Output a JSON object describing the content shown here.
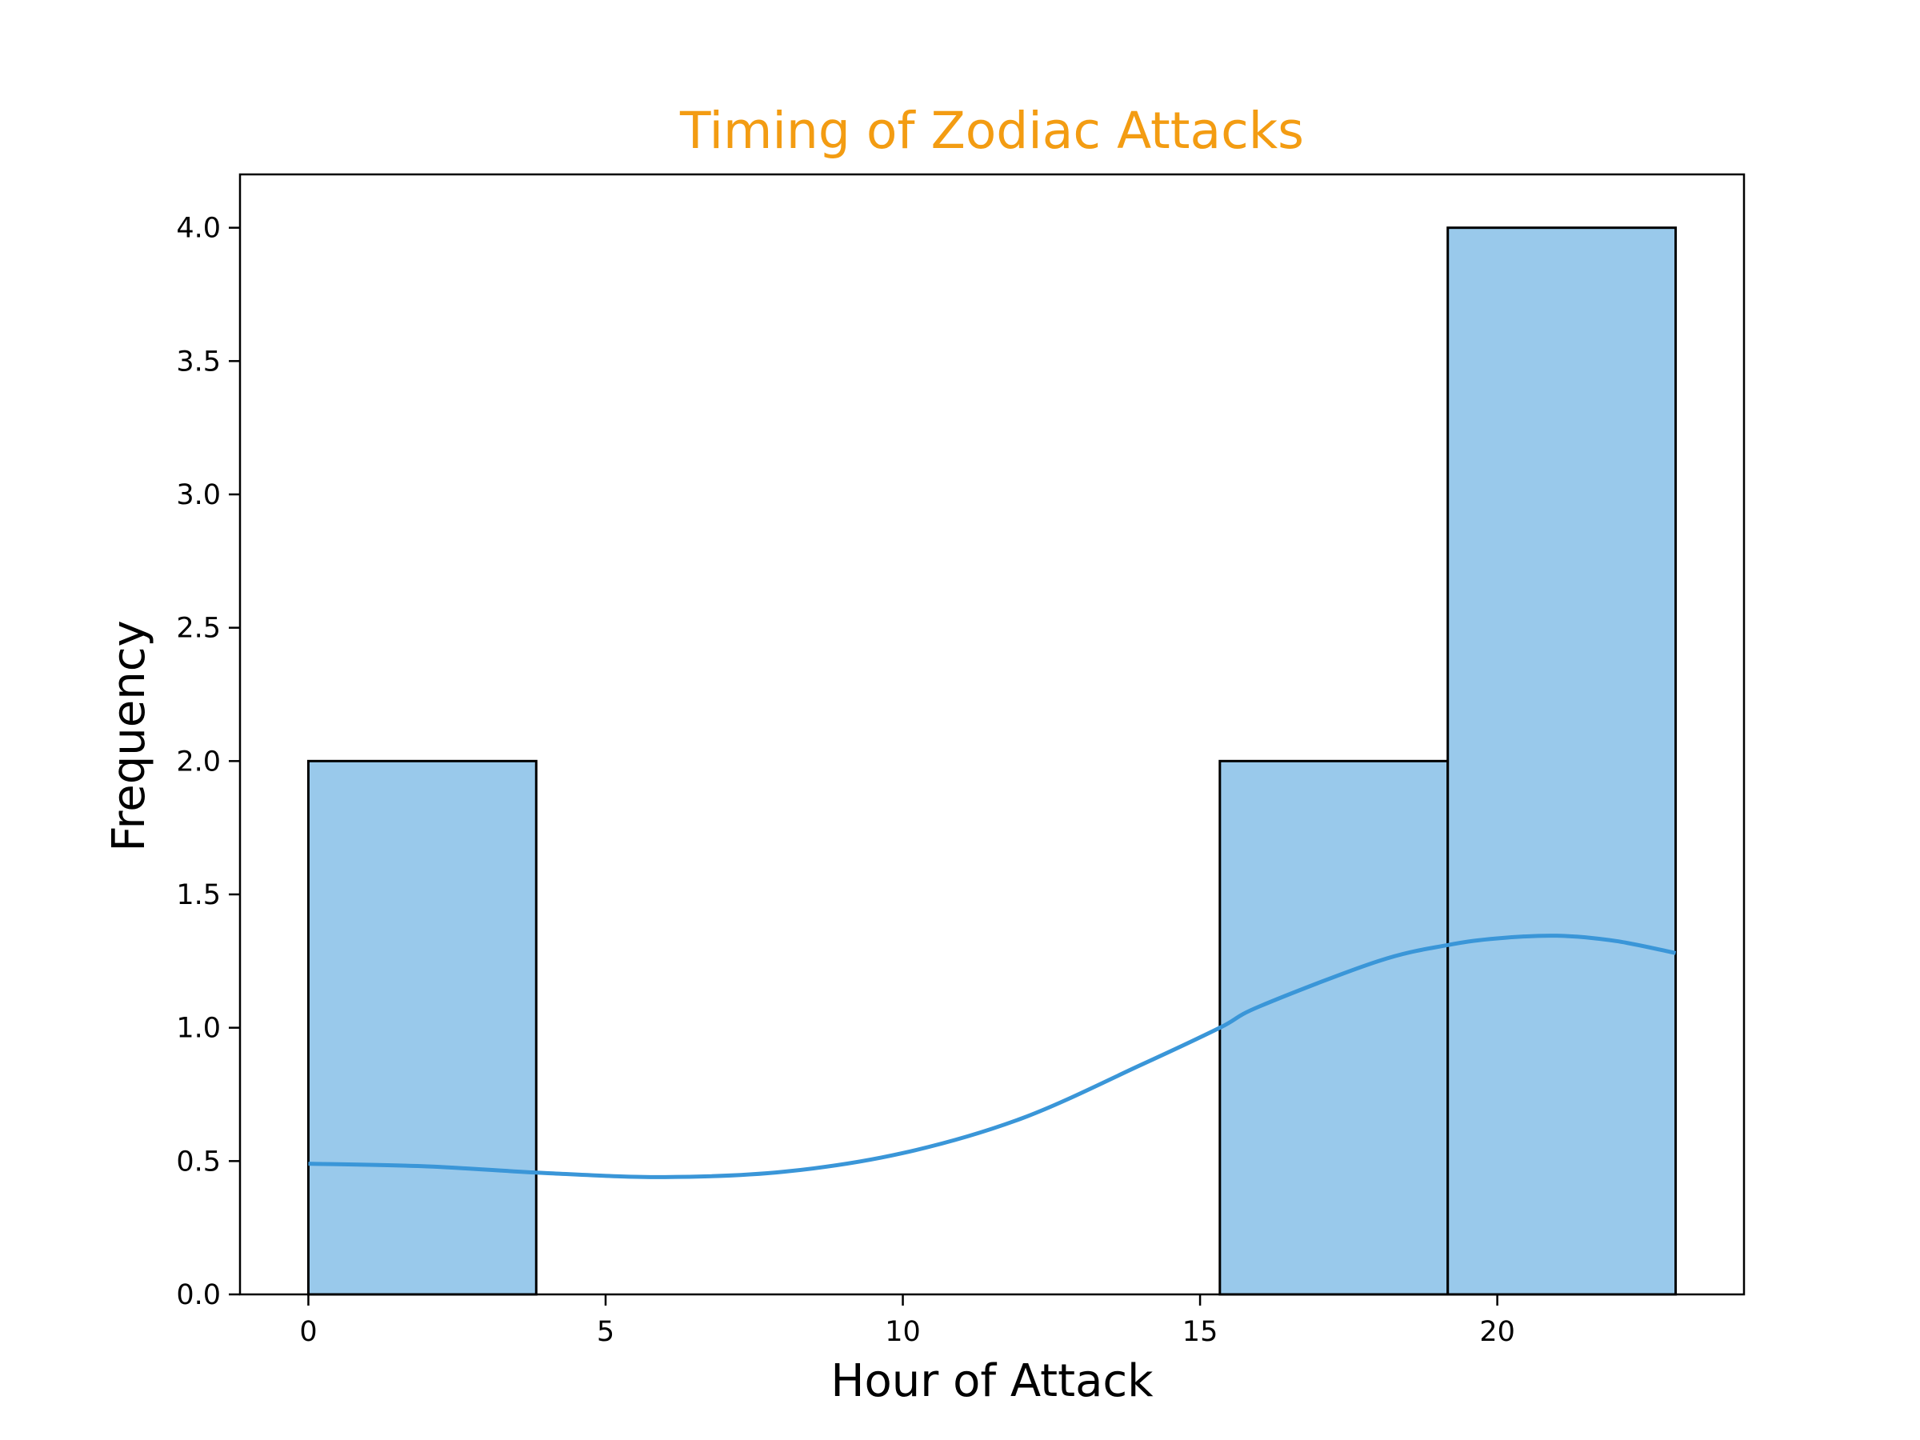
{
  "chart_data": {
    "type": "bar",
    "title": "Timing of Zodiac Attacks",
    "xlabel": "Hour of Attack",
    "ylabel": "Frequency",
    "xlim": [
      -1.15,
      24.15
    ],
    "ylim": [
      0,
      4.2
    ],
    "xticks": [
      0,
      5,
      10,
      15,
      20
    ],
    "xtick_labels": [
      "0",
      "5",
      "10",
      "15",
      "20"
    ],
    "yticks": [
      0.0,
      0.5,
      1.0,
      1.5,
      2.0,
      2.5,
      3.0,
      3.5,
      4.0
    ],
    "ytick_labels": [
      "0.0",
      "0.5",
      "1.0",
      "1.5",
      "2.0",
      "2.5",
      "3.0",
      "3.5",
      "4.0"
    ],
    "bins": [
      {
        "x0": 0.0,
        "x1": 3.833,
        "count": 2
      },
      {
        "x0": 3.833,
        "x1": 7.667,
        "count": 0
      },
      {
        "x0": 7.667,
        "x1": 11.5,
        "count": 0
      },
      {
        "x0": 11.5,
        "x1": 15.333,
        "count": 0
      },
      {
        "x0": 15.333,
        "x1": 19.167,
        "count": 2
      },
      {
        "x0": 19.167,
        "x1": 23.0,
        "count": 4
      }
    ],
    "kde": {
      "x": [
        0,
        2,
        4,
        6,
        8,
        10,
        12,
        14,
        15.333,
        16,
        18,
        19.167,
        20,
        21,
        22,
        23
      ],
      "y": [
        0.49,
        0.48,
        0.455,
        0.44,
        0.46,
        0.53,
        0.66,
        0.86,
        1.0,
        1.08,
        1.25,
        1.31,
        1.335,
        1.345,
        1.325,
        1.28
      ]
    },
    "grid": false,
    "legend": "none",
    "colors": {
      "bar_fill": "#99c9eb",
      "bar_edge": "#000000",
      "kde_line": "#3a96d8",
      "title": "#f39c12"
    }
  }
}
